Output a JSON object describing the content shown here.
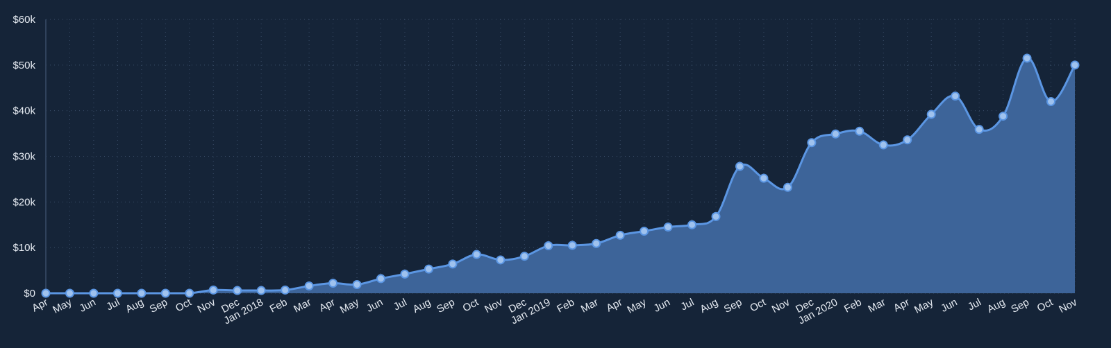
{
  "chart_data": {
    "type": "area",
    "title": "",
    "xlabel": "",
    "ylabel": "",
    "ylim": [
      0,
      60000
    ],
    "grid": true,
    "yticks": [
      "$0",
      "$10k",
      "$20k",
      "$30k",
      "$40k",
      "$50k",
      "$60k"
    ],
    "colors": {
      "background": "#152438",
      "area": "#3d6499",
      "line": "#5b96e3",
      "point": "#9fc2ee",
      "text": "#e6ebf2"
    },
    "categories": [
      "Apr",
      "May",
      "Jun",
      "Jul",
      "Aug",
      "Sep",
      "Oct",
      "Nov",
      "Dec",
      "Jan 2018",
      "Feb",
      "Mar",
      "Apr",
      "May",
      "Jun",
      "Jul",
      "Aug",
      "Sep",
      "Oct",
      "Nov",
      "Dec",
      "Jan 2019",
      "Feb",
      "Mar",
      "Apr",
      "May",
      "Jun",
      "Jul",
      "Aug",
      "Sep",
      "Oct",
      "Nov",
      "Dec",
      "Jan 2020",
      "Feb",
      "Mar",
      "Apr",
      "May",
      "Jun",
      "Jul",
      "Aug",
      "Sep",
      "Oct",
      "Nov"
    ],
    "values": [
      0,
      0,
      0,
      0,
      0,
      0,
      0,
      700,
      600,
      600,
      700,
      1600,
      2200,
      1900,
      3200,
      4200,
      5300,
      6400,
      8500,
      7300,
      8100,
      10400,
      10500,
      10900,
      12700,
      13600,
      14500,
      15000,
      16800,
      27800,
      25200,
      23200,
      33000,
      34900,
      35500,
      32500,
      33600,
      39200,
      43200,
      35900,
      38800,
      51500,
      42000,
      50000
    ]
  }
}
